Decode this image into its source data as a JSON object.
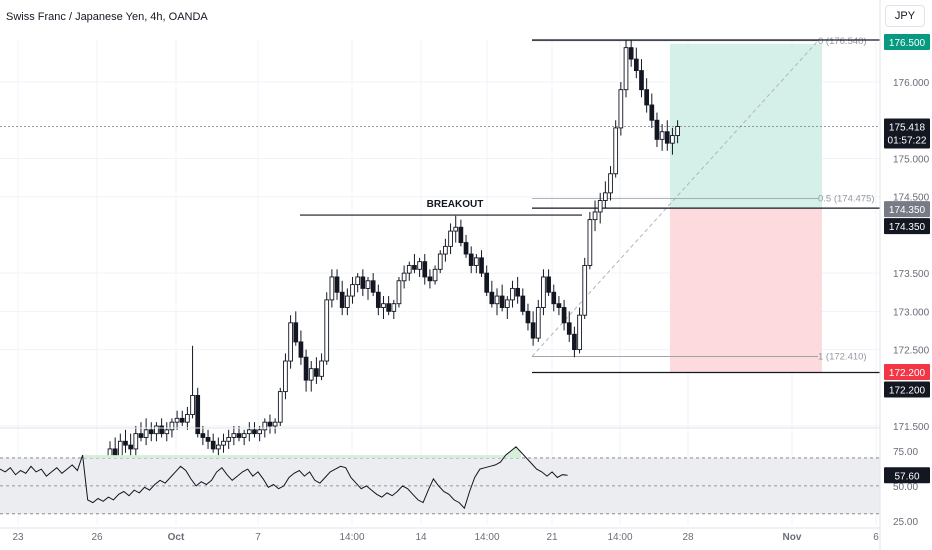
{
  "header": {
    "title": "Swiss Franc / Japanese Yen, 4h, OANDA"
  },
  "currency_button": "JPY",
  "chart_data": {
    "type": "candlestick",
    "instrument": "Swiss Franc / Japanese Yen",
    "timeframe": "4h",
    "broker": "OANDA",
    "price_axis_ticks": [
      "176.000",
      "175.000",
      "174.500",
      "173.500",
      "173.000",
      "172.500",
      "171.500"
    ],
    "time_axis_ticks": [
      "23",
      "26",
      "Oct",
      "7",
      "14:00",
      "14",
      "14:00",
      "21",
      "14:00",
      "28",
      "Nov",
      "6"
    ],
    "ylim": [
      171.5,
      176.55
    ],
    "current_price": 175.418,
    "countdown": "01:57:22",
    "price_labels": {
      "target": "176.500",
      "breakout": "174.350",
      "breakout_2": "174.350",
      "stop": "172.200",
      "stop_2": "172.200"
    },
    "levels": {
      "resistance_top": 176.55,
      "breakout": 174.35,
      "breakout_line": 174.26,
      "low_line": 172.2
    },
    "position": {
      "entry": 174.35,
      "target": 176.5,
      "stop": 172.2,
      "profit_color": "#d5efe9",
      "loss_color": "#fcdade"
    },
    "fibonacci": [
      {
        "label": "0 (176.540)",
        "price": 176.54
      },
      {
        "label": "0.5 (174.475)",
        "price": 174.475
      },
      {
        "label": "1 (172.410)",
        "price": 172.41
      }
    ],
    "annotation": {
      "text": "BREAKOUT",
      "price": 174.35
    },
    "candles": [
      [
        171.05,
        171.3,
        170.95,
        171.2
      ],
      [
        171.2,
        171.35,
        171.05,
        171.1
      ],
      [
        171.1,
        171.4,
        171.0,
        171.3
      ],
      [
        171.3,
        171.45,
        171.15,
        171.25
      ],
      [
        171.25,
        171.4,
        171.1,
        171.2
      ],
      [
        171.2,
        171.5,
        171.1,
        171.4
      ],
      [
        171.4,
        171.55,
        171.3,
        171.35
      ],
      [
        171.35,
        171.6,
        171.25,
        171.45
      ],
      [
        171.45,
        171.55,
        171.3,
        171.4
      ],
      [
        171.4,
        171.55,
        171.3,
        171.5
      ],
      [
        171.5,
        171.6,
        171.35,
        171.4
      ],
      [
        171.4,
        171.55,
        171.3,
        171.45
      ],
      [
        171.45,
        171.6,
        171.35,
        171.55
      ],
      [
        171.55,
        171.7,
        171.45,
        171.6
      ],
      [
        171.6,
        171.7,
        171.5,
        171.55
      ],
      [
        171.55,
        171.75,
        171.45,
        171.65
      ],
      [
        171.65,
        172.55,
        171.6,
        171.9
      ],
      [
        171.9,
        172.0,
        171.35,
        171.4
      ],
      [
        171.4,
        171.5,
        171.25,
        171.35
      ],
      [
        171.35,
        171.45,
        171.2,
        171.3
      ],
      [
        171.3,
        171.4,
        171.15,
        171.2
      ],
      [
        171.2,
        171.35,
        171.1,
        171.25
      ],
      [
        171.25,
        171.4,
        171.15,
        171.3
      ],
      [
        171.3,
        171.45,
        171.2,
        171.35
      ],
      [
        171.35,
        171.5,
        171.25,
        171.4
      ],
      [
        171.4,
        171.5,
        171.3,
        171.35
      ],
      [
        171.35,
        171.45,
        171.25,
        171.4
      ],
      [
        171.4,
        171.55,
        171.3,
        171.45
      ],
      [
        171.45,
        171.55,
        171.35,
        171.4
      ],
      [
        171.4,
        171.5,
        171.3,
        171.45
      ],
      [
        171.45,
        171.6,
        171.35,
        171.55
      ],
      [
        171.55,
        171.65,
        171.4,
        171.5
      ],
      [
        171.5,
        171.6,
        171.4,
        171.55
      ],
      [
        171.55,
        172.0,
        171.5,
        171.95
      ],
      [
        171.95,
        172.45,
        171.85,
        172.35
      ],
      [
        172.35,
        172.95,
        172.25,
        172.85
      ],
      [
        172.85,
        173.0,
        172.55,
        172.6
      ],
      [
        172.6,
        172.75,
        172.3,
        172.4
      ],
      [
        172.4,
        172.5,
        171.95,
        172.1
      ],
      [
        172.1,
        172.35,
        171.95,
        172.25
      ],
      [
        172.25,
        172.4,
        172.05,
        172.15
      ],
      [
        172.15,
        172.45,
        172.1,
        172.35
      ],
      [
        172.35,
        173.25,
        172.3,
        173.15
      ],
      [
        173.15,
        173.55,
        173.05,
        173.45
      ],
      [
        173.45,
        173.55,
        173.15,
        173.25
      ],
      [
        173.25,
        173.4,
        172.95,
        173.05
      ],
      [
        173.05,
        173.3,
        172.95,
        173.2
      ],
      [
        173.2,
        173.45,
        173.1,
        173.35
      ],
      [
        173.35,
        173.5,
        173.25,
        173.45
      ],
      [
        173.45,
        173.55,
        173.2,
        173.3
      ],
      [
        173.3,
        173.45,
        173.15,
        173.4
      ],
      [
        173.4,
        173.5,
        173.2,
        173.25
      ],
      [
        173.25,
        173.35,
        172.95,
        173.05
      ],
      [
        173.05,
        173.2,
        172.9,
        173.1
      ],
      [
        173.1,
        173.2,
        172.95,
        173.0
      ],
      [
        173.0,
        173.15,
        172.9,
        173.1
      ],
      [
        173.1,
        173.45,
        173.05,
        173.4
      ],
      [
        173.4,
        173.6,
        173.3,
        173.5
      ],
      [
        173.5,
        173.65,
        173.4,
        173.6
      ],
      [
        173.6,
        173.75,
        173.5,
        173.55
      ],
      [
        173.55,
        173.7,
        173.45,
        173.65
      ],
      [
        173.65,
        173.75,
        173.35,
        173.45
      ],
      [
        173.45,
        173.55,
        173.3,
        173.4
      ],
      [
        173.4,
        173.6,
        173.35,
        173.55
      ],
      [
        173.55,
        173.8,
        173.5,
        173.75
      ],
      [
        173.75,
        173.95,
        173.65,
        173.85
      ],
      [
        173.85,
        174.15,
        173.75,
        174.05
      ],
      [
        174.05,
        174.25,
        173.9,
        174.1
      ],
      [
        174.1,
        174.2,
        173.85,
        173.9
      ],
      [
        173.9,
        174.0,
        173.7,
        173.75
      ],
      [
        173.75,
        173.85,
        173.5,
        173.6
      ],
      [
        173.6,
        173.75,
        173.5,
        173.7
      ],
      [
        173.7,
        173.8,
        173.45,
        173.5
      ],
      [
        173.5,
        173.6,
        173.2,
        173.25
      ],
      [
        173.25,
        173.4,
        173.05,
        173.1
      ],
      [
        173.1,
        173.3,
        172.95,
        173.2
      ],
      [
        173.2,
        173.35,
        173.0,
        173.05
      ],
      [
        173.05,
        173.2,
        172.9,
        173.15
      ],
      [
        173.15,
        173.4,
        173.05,
        173.3
      ],
      [
        173.3,
        173.45,
        173.1,
        173.2
      ],
      [
        173.2,
        173.3,
        172.95,
        173.0
      ],
      [
        173.0,
        173.1,
        172.75,
        172.85
      ],
      [
        172.85,
        173.0,
        172.55,
        172.65
      ],
      [
        172.65,
        173.15,
        172.6,
        173.05
      ],
      [
        173.05,
        173.55,
        172.95,
        173.45
      ],
      [
        173.45,
        173.55,
        173.2,
        173.25
      ],
      [
        173.25,
        173.35,
        173.0,
        173.1
      ],
      [
        173.1,
        173.2,
        172.95,
        173.05
      ],
      [
        173.05,
        173.15,
        172.75,
        172.85
      ],
      [
        172.85,
        173.0,
        172.6,
        172.7
      ],
      [
        172.7,
        172.8,
        172.4,
        172.5
      ],
      [
        172.5,
        173.05,
        172.45,
        172.95
      ],
      [
        172.95,
        173.7,
        172.9,
        173.6
      ],
      [
        173.6,
        174.3,
        173.55,
        174.2
      ],
      [
        174.2,
        174.45,
        174.05,
        174.3
      ],
      [
        174.3,
        174.55,
        174.15,
        174.45
      ],
      [
        174.45,
        174.7,
        174.35,
        174.55
      ],
      [
        174.55,
        174.9,
        174.45,
        174.8
      ],
      [
        174.8,
        175.5,
        174.75,
        175.4
      ],
      [
        175.4,
        176.0,
        175.3,
        175.9
      ],
      [
        175.9,
        176.55,
        175.8,
        176.45
      ],
      [
        176.45,
        176.55,
        176.2,
        176.3
      ],
      [
        176.3,
        176.45,
        176.05,
        176.15
      ],
      [
        176.15,
        176.3,
        175.8,
        175.9
      ],
      [
        175.9,
        176.05,
        175.6,
        175.7
      ],
      [
        175.7,
        175.85,
        175.4,
        175.5
      ],
      [
        175.5,
        175.6,
        175.15,
        175.25
      ],
      [
        175.25,
        175.45,
        175.1,
        175.35
      ],
      [
        175.35,
        175.5,
        175.1,
        175.2
      ],
      [
        175.2,
        175.4,
        175.05,
        175.3
      ],
      [
        175.3,
        175.5,
        175.2,
        175.418
      ]
    ],
    "rsi": {
      "label": "57.60",
      "axis_ticks": [
        "75.00",
        "50.00",
        "25.00"
      ],
      "ylim": [
        22,
        90
      ],
      "upper": 70,
      "mid": 50,
      "lower": 30,
      "values": [
        62,
        60,
        63,
        58,
        61,
        59,
        64,
        60,
        62,
        57,
        60,
        63,
        59,
        62,
        65,
        61,
        72,
        40,
        38,
        41,
        39,
        42,
        40,
        44,
        46,
        43,
        47,
        45,
        49,
        47,
        51,
        54,
        52,
        56,
        60,
        64,
        61,
        55,
        50,
        53,
        51,
        54,
        60,
        63,
        58,
        54,
        57,
        60,
        62,
        57,
        60,
        55,
        49,
        51,
        48,
        50,
        56,
        59,
        61,
        57,
        60,
        54,
        52,
        56,
        60,
        62,
        64,
        63,
        56,
        52,
        48,
        50,
        47,
        44,
        42,
        45,
        43,
        46,
        50,
        48,
        44,
        40,
        38,
        47,
        55,
        50,
        46,
        44,
        40,
        38,
        34,
        46,
        56,
        62,
        63,
        64,
        65,
        67,
        72,
        75,
        78,
        74,
        70,
        66,
        62,
        60,
        57,
        60,
        56,
        58,
        57.6
      ]
    }
  }
}
